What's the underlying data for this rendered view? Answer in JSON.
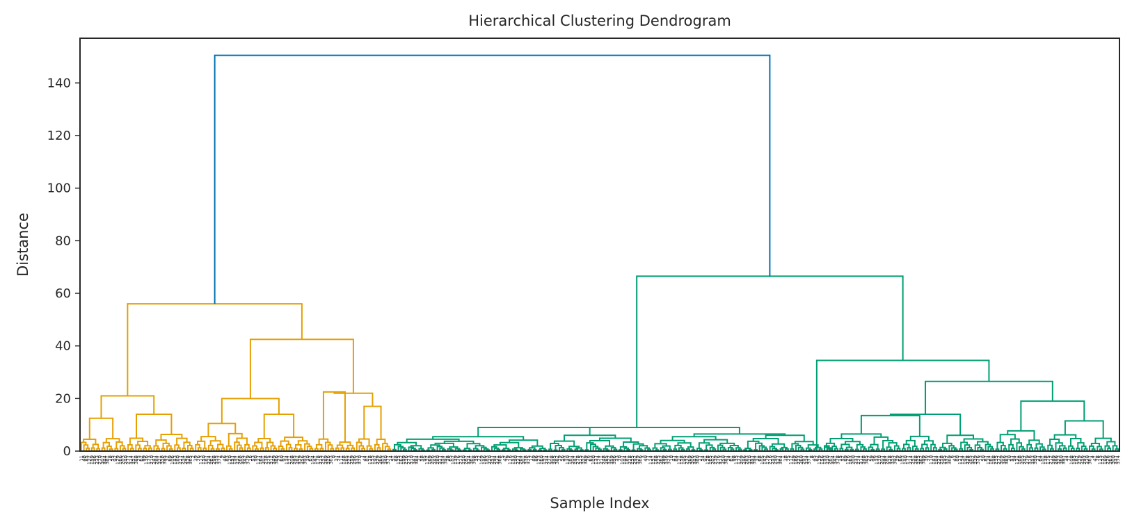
{
  "chart_data": {
    "type": "dendrogram",
    "title": "Hierarchical Clustering Dendrogram",
    "xlabel": "Sample Index",
    "ylabel": "Distance",
    "ylim": [
      0,
      157
    ],
    "yticks": [
      0,
      20,
      40,
      60,
      80,
      100,
      120,
      140
    ],
    "grid": false,
    "legend": "none",
    "leaf_count": 400,
    "link_color_above_threshold": "#0072B2",
    "colors": {
      "cluster_1": "#E69F00",
      "cluster_2": "#009E73",
      "root_link": "#0072B2",
      "axis": "#262626"
    },
    "clusters": [
      {
        "id": "orange",
        "color": "#E69F00",
        "leaf_range": [
          0,
          120
        ],
        "merge_height": 56
      },
      {
        "id": "green",
        "color": "#009E73",
        "leaf_range": [
          120,
          400
        ],
        "merge_height": 66.5
      }
    ],
    "major_links": [
      {
        "left_x": 57,
        "right_x": 247,
        "height": 150.5,
        "color": "#0072B2"
      },
      {
        "left_x": 24,
        "right_x": 91,
        "height": 56,
        "color": "#E69F00"
      },
      {
        "left_x": 8,
        "right_x": 39,
        "height": 21,
        "color": "#E69F00"
      },
      {
        "left_x": 74,
        "right_x": 108,
        "height": 42.5,
        "color": "#E69F00"
      },
      {
        "left_x": 64,
        "right_x": 84,
        "height": 20,
        "color": "#E69F00"
      },
      {
        "left_x": 104,
        "right_x": 113,
        "height": 22,
        "color": "#E69F00"
      },
      {
        "left_x": 175,
        "right_x": 319,
        "height": 66.5,
        "color": "#009E73"
      },
      {
        "left_x": 130,
        "right_x": 219,
        "height": 9,
        "color": "#009E73"
      },
      {
        "left_x": 286,
        "right_x": 352,
        "height": 34.5,
        "color": "#009E73"
      },
      {
        "left_x": 316,
        "right_x": 388,
        "height": 26.5,
        "color": "#009E73"
      }
    ]
  }
}
